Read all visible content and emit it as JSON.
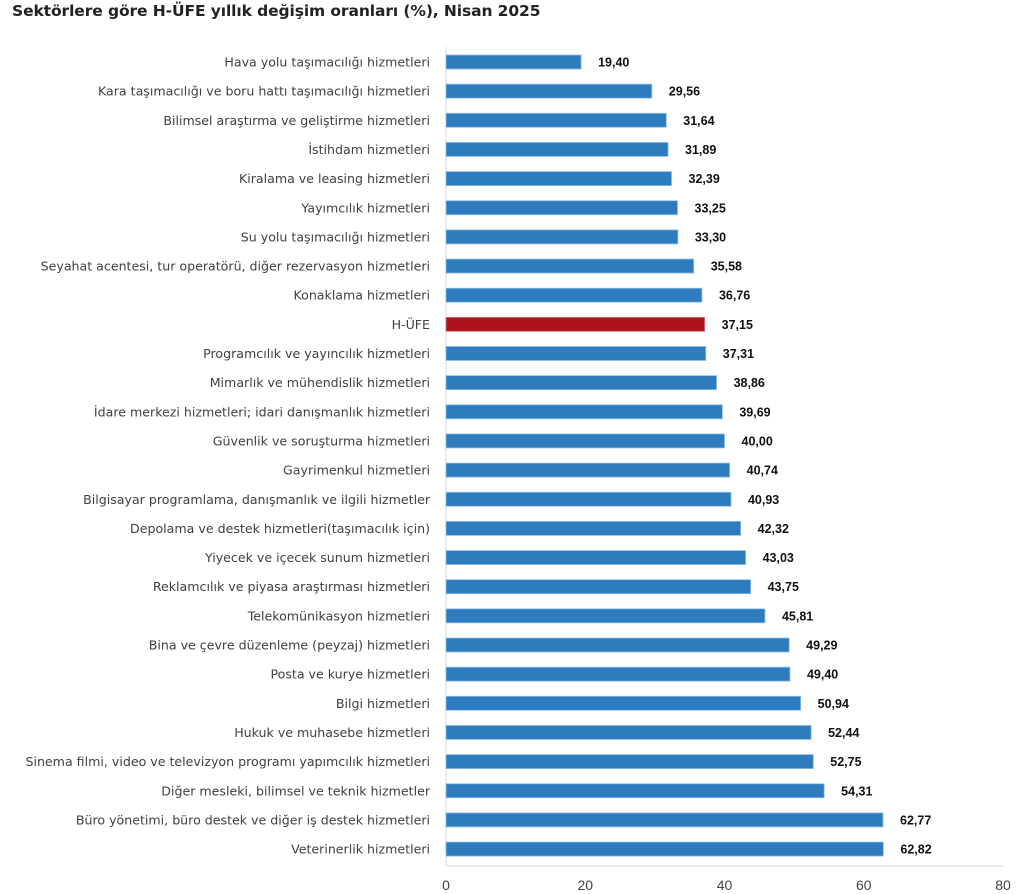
{
  "chart_data": {
    "type": "bar",
    "orientation": "horizontal",
    "title": "Sektörlere göre H-ÜFE yıllık değişim oranları (%), Nisan 2025",
    "xlabel": "",
    "ylabel": "",
    "xlim": [
      0,
      80
    ],
    "xticks": [
      0,
      20,
      40,
      60,
      80
    ],
    "xtick_labels": [
      "0",
      "20",
      "40",
      "60",
      "80"
    ],
    "grid": false,
    "legend": "none",
    "default_color": "#2e7bbd",
    "highlight_color": "#ab141b",
    "highlight_category": "H-ÜFE",
    "categories": [
      "Hava yolu taşımacılığı hizmetleri",
      "Kara taşımacılığı ve boru hattı taşımacılığı hizmetleri",
      "Bilimsel araştırma ve geliştirme hizmetleri",
      "İstihdam hizmetleri",
      "Kiralama ve leasing hizmetleri",
      "Yayımcılık hizmetleri",
      "Su yolu taşımacılığı hizmetleri",
      "Seyahat acentesi, tur operatörü, diğer rezervasyon hizmetleri",
      "Konaklama hizmetleri",
      "H-ÜFE",
      "Programcılık ve yayıncılık hizmetleri",
      "Mimarlık ve mühendislik hizmetleri",
      "İdare merkezi hizmetleri; idari danışmanlık hizmetleri",
      "Güvenlik ve soruşturma hizmetleri",
      "Gayrimenkul hizmetleri",
      "Bilgisayar programlama, danışmanlık ve ilgili hizmetler",
      "Depolama ve destek hizmetleri(taşımacılık için)",
      "Yiyecek ve içecek sunum hizmetleri",
      "Reklamcılık ve piyasa araştırması hizmetleri",
      "Telekomünikasyon hizmetleri",
      "Bina ve çevre düzenleme (peyzaj) hizmetleri",
      "Posta ve kurye hizmetleri",
      "Bilgi hizmetleri",
      "Hukuk ve muhasebe hizmetleri",
      "Sinema filmi, video ve televizyon programı yapımcılık hizmetleri",
      "Diğer mesleki, bilimsel ve teknik hizmetler",
      "Büro yönetimi, büro destek ve diğer iş destek hizmetleri",
      "Veterinerlik hizmetleri"
    ],
    "values": [
      19.4,
      29.56,
      31.64,
      31.89,
      32.39,
      33.25,
      33.3,
      35.58,
      36.76,
      37.15,
      37.31,
      38.86,
      39.69,
      40.0,
      40.74,
      40.93,
      42.32,
      43.03,
      43.75,
      45.81,
      49.29,
      49.4,
      50.94,
      52.44,
      52.75,
      54.31,
      62.77,
      62.82
    ],
    "value_labels": [
      "19,40",
      "29,56",
      "31,64",
      "31,89",
      "32,39",
      "33,25",
      "33,30",
      "35,58",
      "36,76",
      "37,15",
      "37,31",
      "38,86",
      "39,69",
      "40,00",
      "40,74",
      "40,93",
      "42,32",
      "43,03",
      "43,75",
      "45,81",
      "49,29",
      "49,40",
      "50,94",
      "52,44",
      "52,75",
      "54,31",
      "62,77",
      "62,82"
    ]
  }
}
